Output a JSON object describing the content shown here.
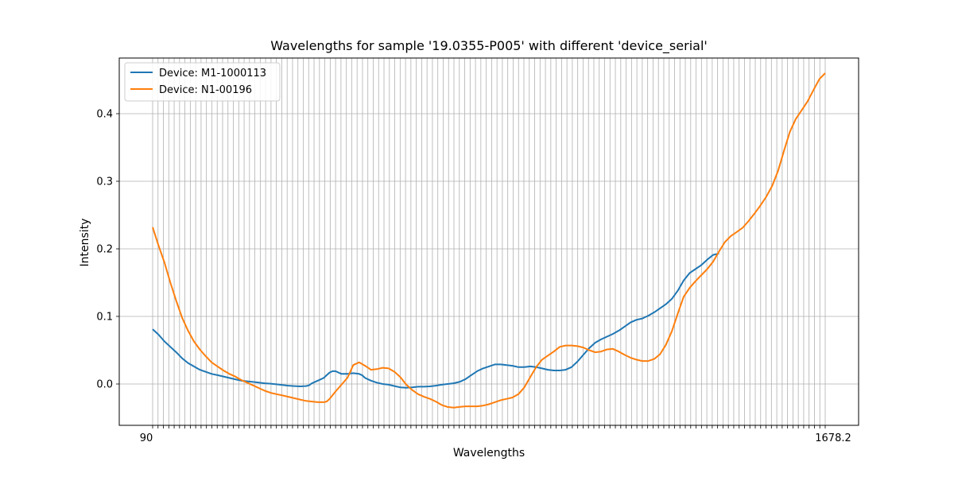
{
  "chart_data": {
    "type": "line",
    "title": "Wavelengths for sample '19.0355-P005' with different 'device_serial'",
    "xlabel": "Wavelengths",
    "ylabel": "Intensity",
    "ylim": [
      -0.06,
      0.48
    ],
    "yticks": [
      "0.0",
      "0.1",
      "0.2",
      "0.3",
      "0.4"
    ],
    "grid": true,
    "legend_position": "top-left",
    "x_tick_count": 126,
    "x_first_tick_label": "90",
    "x_last_tick_label": "1678.2",
    "series": [
      {
        "name": "Device: M1-1000113",
        "color": "#1f77b4",
        "points": [
          [
            0,
            0.081
          ],
          [
            2,
            0.073
          ],
          [
            4,
            0.063
          ],
          [
            6,
            0.055
          ],
          [
            8,
            0.047
          ],
          [
            10,
            0.038
          ],
          [
            12,
            0.031
          ],
          [
            14,
            0.026
          ],
          [
            16,
            0.021
          ],
          [
            18,
            0.018
          ],
          [
            20,
            0.015
          ],
          [
            22,
            0.013
          ],
          [
            24,
            0.011
          ],
          [
            26,
            0.009
          ],
          [
            28,
            0.007
          ],
          [
            30,
            0.005
          ],
          [
            32,
            0.004
          ],
          [
            34,
            0.003
          ],
          [
            36,
            0.002
          ],
          [
            38,
            0.001
          ],
          [
            40,
            0.0005
          ],
          [
            42,
            -0.0005
          ],
          [
            44,
            -0.0015
          ],
          [
            46,
            -0.0025
          ],
          [
            48,
            -0.003
          ],
          [
            50,
            -0.0035
          ],
          [
            52,
            -0.003
          ],
          [
            53,
            -0.002
          ],
          [
            54,
            0.001
          ],
          [
            56,
            0.005
          ],
          [
            58,
            0.009
          ],
          [
            59,
            0.013
          ],
          [
            60,
            0.017
          ],
          [
            61,
            0.019
          ],
          [
            62,
            0.019
          ],
          [
            63,
            0.017
          ],
          [
            64,
            0.015
          ],
          [
            66,
            0.015
          ],
          [
            68,
            0.016
          ],
          [
            70,
            0.015
          ],
          [
            71,
            0.013
          ],
          [
            72,
            0.009
          ],
          [
            74,
            0.005
          ],
          [
            76,
            0.002
          ],
          [
            78,
            0.0
          ],
          [
            80,
            -0.001
          ],
          [
            82,
            -0.003
          ],
          [
            84,
            -0.005
          ],
          [
            86,
            -0.0055
          ],
          [
            88,
            -0.005
          ],
          [
            90,
            -0.004
          ],
          [
            92,
            -0.004
          ],
          [
            94,
            -0.0035
          ],
          [
            96,
            -0.0025
          ],
          [
            98,
            -0.001
          ],
          [
            100,
            0.0
          ],
          [
            102,
            0.001
          ],
          [
            104,
            0.003
          ],
          [
            106,
            0.007
          ],
          [
            108,
            0.013
          ],
          [
            110,
            0.019
          ],
          [
            112,
            0.023
          ],
          [
            114,
            0.026
          ],
          [
            116,
            0.029
          ],
          [
            118,
            0.029
          ],
          [
            120,
            0.028
          ],
          [
            122,
            0.027
          ],
          [
            124,
            0.025
          ]
        ],
        "points_b": [
          [
            124,
            0.025
          ],
          [
            126,
            0.025
          ],
          [
            128,
            0.026
          ],
          [
            130,
            0.025
          ],
          [
            132,
            0.023
          ],
          [
            134,
            0.021
          ],
          [
            136,
            0.02
          ],
          [
            138,
            0.02
          ],
          [
            140,
            0.021
          ],
          [
            142,
            0.025
          ],
          [
            144,
            0.033
          ],
          [
            146,
            0.043
          ],
          [
            148,
            0.053
          ],
          [
            150,
            0.061
          ],
          [
            152,
            0.066
          ],
          [
            154,
            0.07
          ],
          [
            156,
            0.074
          ],
          [
            158,
            0.079
          ],
          [
            160,
            0.085
          ],
          [
            162,
            0.091
          ],
          [
            164,
            0.095
          ],
          [
            166,
            0.097
          ],
          [
            168,
            0.101
          ],
          [
            170,
            0.106
          ],
          [
            172,
            0.112
          ],
          [
            174,
            0.118
          ],
          [
            176,
            0.126
          ],
          [
            178,
            0.138
          ],
          [
            180,
            0.153
          ],
          [
            182,
            0.164
          ],
          [
            184,
            0.17
          ],
          [
            186,
            0.176
          ],
          [
            188,
            0.184
          ],
          [
            190,
            0.191
          ],
          [
            192,
            0.193
          ]
        ]
      },
      {
        "name": "Device: N1-00196",
        "color": "#ff7f0e",
        "points": [
          [
            0,
            0.232
          ],
          [
            2,
            0.205
          ],
          [
            4,
            0.18
          ],
          [
            6,
            0.15
          ],
          [
            8,
            0.123
          ],
          [
            10,
            0.098
          ],
          [
            12,
            0.079
          ],
          [
            14,
            0.063
          ],
          [
            16,
            0.051
          ],
          [
            18,
            0.041
          ],
          [
            20,
            0.032
          ],
          [
            22,
            0.026
          ],
          [
            24,
            0.02
          ],
          [
            26,
            0.015
          ],
          [
            28,
            0.011
          ],
          [
            30,
            0.006
          ],
          [
            32,
            0.002
          ],
          [
            34,
            -0.002
          ],
          [
            36,
            -0.006
          ],
          [
            38,
            -0.01
          ],
          [
            40,
            -0.013
          ],
          [
            42,
            -0.015
          ],
          [
            44,
            -0.017
          ],
          [
            46,
            -0.019
          ],
          [
            48,
            -0.021
          ],
          [
            50,
            -0.023
          ],
          [
            52,
            -0.025
          ],
          [
            54,
            -0.026
          ],
          [
            56,
            -0.027
          ],
          [
            58,
            -0.027
          ],
          [
            59,
            -0.026
          ],
          [
            60,
            -0.022
          ],
          [
            62,
            -0.011
          ],
          [
            64,
            -0.001
          ],
          [
            66,
            0.009
          ],
          [
            67,
            0.018
          ],
          [
            68,
            0.028
          ],
          [
            70,
            0.032
          ],
          [
            72,
            0.027
          ],
          [
            74,
            0.021
          ],
          [
            76,
            0.022
          ],
          [
            78,
            0.024
          ],
          [
            80,
            0.023
          ],
          [
            82,
            0.018
          ],
          [
            84,
            0.01
          ],
          [
            86,
            -0.001
          ],
          [
            88,
            -0.009
          ],
          [
            90,
            -0.015
          ],
          [
            92,
            -0.019
          ],
          [
            94,
            -0.022
          ],
          [
            96,
            -0.026
          ],
          [
            98,
            -0.031
          ],
          [
            100,
            -0.034
          ],
          [
            102,
            -0.035
          ],
          [
            104,
            -0.034
          ],
          [
            106,
            -0.033
          ],
          [
            108,
            -0.033
          ],
          [
            110,
            -0.033
          ],
          [
            112,
            -0.032
          ],
          [
            114,
            -0.03
          ],
          [
            116,
            -0.027
          ],
          [
            118,
            -0.024
          ],
          [
            120,
            -0.022
          ],
          [
            122,
            -0.02
          ],
          [
            124,
            -0.015
          ]
        ],
        "points_b": [
          [
            124,
            -0.015
          ],
          [
            126,
            -0.005
          ],
          [
            128,
            0.01
          ],
          [
            130,
            0.025
          ],
          [
            132,
            0.036
          ],
          [
            134,
            0.042
          ],
          [
            136,
            0.048
          ],
          [
            138,
            0.055
          ],
          [
            140,
            0.057
          ],
          [
            142,
            0.057
          ],
          [
            144,
            0.056
          ],
          [
            146,
            0.054
          ],
          [
            148,
            0.05
          ],
          [
            150,
            0.047
          ],
          [
            152,
            0.048
          ],
          [
            154,
            0.051
          ],
          [
            156,
            0.052
          ],
          [
            158,
            0.048
          ],
          [
            160,
            0.043
          ],
          [
            162,
            0.039
          ],
          [
            164,
            0.036
          ],
          [
            166,
            0.034
          ],
          [
            168,
            0.034
          ],
          [
            170,
            0.037
          ],
          [
            172,
            0.044
          ],
          [
            174,
            0.058
          ],
          [
            176,
            0.078
          ],
          [
            178,
            0.104
          ],
          [
            180,
            0.129
          ],
          [
            182,
            0.142
          ],
          [
            184,
            0.152
          ],
          [
            186,
            0.161
          ],
          [
            188,
            0.17
          ],
          [
            190,
            0.181
          ],
          [
            192,
            0.196
          ],
          [
            194,
            0.21
          ],
          [
            196,
            0.219
          ],
          [
            198,
            0.225
          ],
          [
            200,
            0.231
          ],
          [
            202,
            0.241
          ],
          [
            204,
            0.252
          ],
          [
            206,
            0.264
          ],
          [
            208,
            0.277
          ],
          [
            210,
            0.293
          ],
          [
            212,
            0.315
          ],
          [
            214,
            0.345
          ],
          [
            216,
            0.373
          ],
          [
            218,
            0.392
          ],
          [
            220,
            0.405
          ],
          [
            222,
            0.418
          ],
          [
            224,
            0.435
          ],
          [
            226,
            0.451
          ],
          [
            228,
            0.46
          ]
        ]
      }
    ]
  }
}
